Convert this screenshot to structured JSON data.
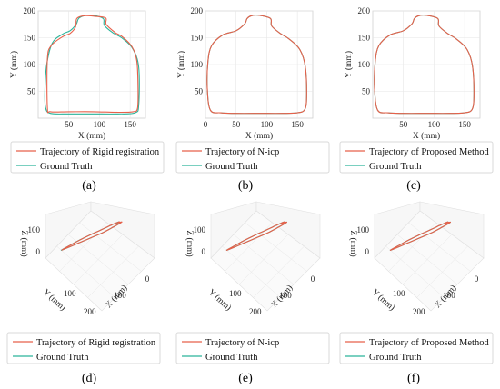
{
  "colors": {
    "trajectory": "#e8604a",
    "ground_truth": "#2bb39a",
    "grid": "#e6e6e6",
    "pane": "#f7f7f7"
  },
  "chart_data": [
    {
      "type": "line",
      "caption": "(a)",
      "xlabel": "X (mm)",
      "ylabel": "Y (mm)",
      "xlim": [
        0,
        175
      ],
      "ylim": [
        0,
        200
      ],
      "xticks": [
        50,
        100,
        150
      ],
      "yticks": [
        50,
        100,
        150,
        200
      ],
      "series": [
        {
          "name": "Trajectory of Rigid registration",
          "role": "trajectory",
          "x": [
            92,
            110,
            111,
            125,
            137,
            153,
            161,
            163,
            162,
            155,
            130,
            90,
            50,
            20,
            15,
            15,
            21,
            40,
            52,
            61,
            63,
            75
          ],
          "y": [
            190,
            187,
            175,
            160,
            152,
            133,
            105,
            50,
            18,
            12,
            11,
            12,
            12,
            12,
            20,
            110,
            135,
            152,
            158,
            170,
            186,
            191
          ]
        },
        {
          "name": "Ground Truth",
          "role": "ground_truth",
          "x": [
            88,
            106,
            108,
            122,
            136,
            154,
            164,
            164,
            158,
            130,
            90,
            50,
            20,
            12,
            11,
            14,
            23,
            40,
            52,
            62,
            66,
            75
          ],
          "y": [
            192,
            186,
            173,
            159,
            150,
            130,
            95,
            25,
            10,
            8,
            8,
            8,
            9,
            20,
            50,
            100,
            140,
            157,
            163,
            175,
            186,
            191
          ]
        }
      ]
    },
    {
      "type": "line",
      "caption": "(b)",
      "xlabel": "X (mm)",
      "ylabel": "Y (mm)",
      "xlim": [
        0,
        175
      ],
      "ylim": [
        0,
        200
      ],
      "xticks": [
        0,
        50,
        100,
        150
      ],
      "yticks": [
        50,
        100,
        150,
        200
      ],
      "series": [
        {
          "name": "Trajectory of N-icp",
          "role": "trajectory",
          "x": [
            86,
            106,
            108,
            122,
            136,
            154,
            163,
            165,
            162,
            150,
            125,
            90,
            50,
            25,
            8,
            3,
            4,
            10,
            28,
            50,
            64,
            68,
            75
          ],
          "y": [
            192,
            186,
            172,
            158,
            148,
            128,
            95,
            40,
            16,
            10,
            9,
            9,
            9,
            10,
            15,
            55,
            105,
            135,
            155,
            163,
            176,
            186,
            191
          ]
        },
        {
          "name": "Ground Truth",
          "role": "ground_truth",
          "x": [
            86,
            106,
            108,
            122,
            136,
            154,
            163,
            165,
            162,
            150,
            125,
            90,
            50,
            25,
            8,
            3,
            4,
            10,
            28,
            50,
            64,
            68,
            75
          ],
          "y": [
            192,
            186,
            172,
            158,
            148,
            128,
            95,
            40,
            16,
            10,
            9,
            9,
            9,
            10,
            15,
            55,
            105,
            135,
            155,
            163,
            176,
            186,
            191
          ]
        }
      ]
    },
    {
      "type": "line",
      "caption": "(c)",
      "xlabel": "X (mm)",
      "ylabel": "Y (mm)",
      "xlim": [
        0,
        175
      ],
      "ylim": [
        0,
        200
      ],
      "xticks": [
        50,
        100,
        150
      ],
      "yticks": [
        50,
        100,
        150,
        200
      ],
      "series": [
        {
          "name": "Trajectory of Proposed Method",
          "role": "trajectory",
          "x": [
            86,
            106,
            108,
            122,
            136,
            154,
            163,
            165,
            162,
            150,
            125,
            90,
            50,
            25,
            8,
            3,
            4,
            10,
            28,
            50,
            64,
            68,
            75
          ],
          "y": [
            192,
            186,
            172,
            158,
            148,
            128,
            95,
            40,
            16,
            10,
            9,
            9,
            9,
            10,
            15,
            55,
            105,
            135,
            155,
            163,
            176,
            186,
            191
          ]
        },
        {
          "name": "Ground Truth",
          "role": "ground_truth",
          "x": [
            86,
            106,
            108,
            122,
            136,
            154,
            163,
            165,
            162,
            150,
            125,
            90,
            50,
            25,
            8,
            3,
            4,
            10,
            28,
            50,
            64,
            68,
            75
          ],
          "y": [
            192,
            186,
            172,
            158,
            148,
            128,
            95,
            40,
            16,
            10,
            9,
            9,
            9,
            10,
            15,
            55,
            105,
            135,
            155,
            163,
            176,
            186,
            191
          ]
        }
      ]
    },
    {
      "type": "line3d",
      "caption": "(d)",
      "xlabel": "X (mm)",
      "ylabel": "Y (mm)",
      "zlabel": "Z (mm)",
      "xticks": [
        0,
        100
      ],
      "yticks": [
        100,
        200
      ],
      "zticks": [
        0,
        100
      ],
      "series": [
        {
          "name": "Trajectory of Rigid registration",
          "role": "trajectory"
        },
        {
          "name": "Ground Truth",
          "role": "ground_truth"
        }
      ]
    },
    {
      "type": "line3d",
      "caption": "(e)",
      "xlabel": "X (mm)",
      "ylabel": "Y (mm)",
      "zlabel": "Z (mm)",
      "xticks": [
        0,
        100
      ],
      "yticks": [
        100,
        200
      ],
      "zticks": [
        0,
        100
      ],
      "series": [
        {
          "name": "Trajectory of N-icp",
          "role": "trajectory"
        },
        {
          "name": "Ground Truth",
          "role": "ground_truth"
        }
      ]
    },
    {
      "type": "line3d",
      "caption": "(f)",
      "xlabel": "X (mm)",
      "ylabel": "Y (mm)",
      "zlabel": "Z (mm)",
      "xticks": [
        0,
        100
      ],
      "yticks": [
        100,
        200
      ],
      "zticks": [
        0,
        100
      ],
      "series": [
        {
          "name": "Trajectory of Proposed Method",
          "role": "trajectory"
        },
        {
          "name": "Ground Truth",
          "role": "ground_truth"
        }
      ]
    }
  ]
}
